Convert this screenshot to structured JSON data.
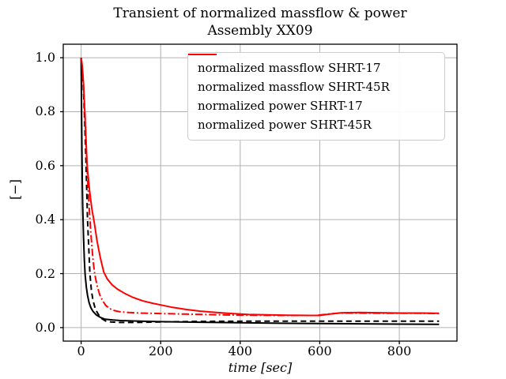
{
  "chart_data": {
    "type": "line",
    "title": "Transient of normalized massflow & power",
    "subtitle": "Assembly XX09",
    "xlabel": "time [sec]",
    "ylabel": "[−]",
    "xlim": [
      -45,
      945
    ],
    "ylim": [
      -0.05,
      1.05
    ],
    "xticks": [
      0,
      200,
      400,
      600,
      800
    ],
    "xtick_labels": [
      "0",
      "200",
      "400",
      "600",
      "800"
    ],
    "yticks": [
      0.0,
      0.2,
      0.4,
      0.6,
      0.8,
      1.0
    ],
    "ytick_labels": [
      "0.0",
      "0.2",
      "0.4",
      "0.6",
      "0.8",
      "1.0"
    ],
    "grid": true,
    "legend_position": "upper center",
    "colors": {
      "black_series": "#000000",
      "red_series": "#ff0000",
      "grid": "#b0b0b0",
      "frame": "#000000",
      "legend_border": "#cccccc"
    },
    "series": [
      {
        "name": "normalized massflow SHRT-17",
        "color": "#000000",
        "style": "dashed",
        "points": [
          [
            0,
            1.0
          ],
          [
            4,
            0.94
          ],
          [
            8,
            0.8
          ],
          [
            12,
            0.62
          ],
          [
            16,
            0.4
          ],
          [
            19,
            0.3
          ],
          [
            22,
            0.2
          ],
          [
            26,
            0.135
          ],
          [
            30,
            0.1
          ],
          [
            36,
            0.068
          ],
          [
            44,
            0.047
          ],
          [
            52,
            0.033
          ],
          [
            62,
            0.024
          ],
          [
            75,
            0.021
          ],
          [
            95,
            0.019
          ],
          [
            140,
            0.019
          ],
          [
            200,
            0.021
          ],
          [
            300,
            0.023
          ],
          [
            450,
            0.024
          ],
          [
            600,
            0.024
          ],
          [
            750,
            0.024
          ],
          [
            900,
            0.024
          ]
        ]
      },
      {
        "name": "normalized massflow SHRT-45R",
        "color": "#ff0000",
        "style": "dashdot",
        "points": [
          [
            0,
            1.0
          ],
          [
            5,
            0.92
          ],
          [
            10,
            0.78
          ],
          [
            14,
            0.62
          ],
          [
            18,
            0.5
          ],
          [
            22,
            0.4
          ],
          [
            26,
            0.32
          ],
          [
            30,
            0.25
          ],
          [
            34,
            0.2
          ],
          [
            40,
            0.155
          ],
          [
            47,
            0.12
          ],
          [
            54,
            0.1
          ],
          [
            62,
            0.082
          ],
          [
            72,
            0.07
          ],
          [
            84,
            0.063
          ],
          [
            100,
            0.058
          ],
          [
            120,
            0.056
          ],
          [
            150,
            0.054
          ],
          [
            200,
            0.052
          ],
          [
            260,
            0.05
          ],
          [
            330,
            0.048
          ],
          [
            400,
            0.046
          ],
          [
            500,
            0.045
          ],
          [
            590,
            0.045
          ],
          [
            620,
            0.05
          ],
          [
            650,
            0.054
          ],
          [
            700,
            0.054
          ],
          [
            780,
            0.053
          ],
          [
            850,
            0.053
          ],
          [
            900,
            0.052
          ]
        ]
      },
      {
        "name": "normalized power SHRT-17",
        "color": "#000000",
        "style": "solid",
        "points": [
          [
            0,
            1.0
          ],
          [
            1,
            0.82
          ],
          [
            2,
            0.66
          ],
          [
            3,
            0.54
          ],
          [
            4,
            0.45
          ],
          [
            6,
            0.33
          ],
          [
            8,
            0.25
          ],
          [
            10,
            0.195
          ],
          [
            13,
            0.15
          ],
          [
            16,
            0.12
          ],
          [
            20,
            0.092
          ],
          [
            25,
            0.072
          ],
          [
            30,
            0.06
          ],
          [
            38,
            0.047
          ],
          [
            48,
            0.038
          ],
          [
            60,
            0.031
          ],
          [
            80,
            0.028
          ],
          [
            100,
            0.026
          ],
          [
            150,
            0.024
          ],
          [
            200,
            0.022
          ],
          [
            300,
            0.02
          ],
          [
            400,
            0.018
          ],
          [
            500,
            0.016
          ],
          [
            600,
            0.015
          ],
          [
            700,
            0.014
          ],
          [
            800,
            0.013
          ],
          [
            900,
            0.012
          ]
        ]
      },
      {
        "name": "normalized power SHRT-45R",
        "color": "#ff0000",
        "style": "solid",
        "points": [
          [
            0,
            1.0
          ],
          [
            3,
            0.97
          ],
          [
            6,
            0.9
          ],
          [
            9,
            0.8
          ],
          [
            12,
            0.7
          ],
          [
            15,
            0.6
          ],
          [
            21,
            0.51
          ],
          [
            27,
            0.44
          ],
          [
            33,
            0.39
          ],
          [
            40,
            0.32
          ],
          [
            48,
            0.26
          ],
          [
            57,
            0.205
          ],
          [
            66,
            0.18
          ],
          [
            78,
            0.158
          ],
          [
            92,
            0.142
          ],
          [
            110,
            0.126
          ],
          [
            130,
            0.112
          ],
          [
            155,
            0.099
          ],
          [
            180,
            0.09
          ],
          [
            200,
            0.084
          ],
          [
            230,
            0.075
          ],
          [
            265,
            0.067
          ],
          [
            300,
            0.061
          ],
          [
            340,
            0.056
          ],
          [
            380,
            0.052
          ],
          [
            420,
            0.049
          ],
          [
            470,
            0.047
          ],
          [
            520,
            0.046
          ],
          [
            570,
            0.045
          ],
          [
            600,
            0.045
          ],
          [
            625,
            0.05
          ],
          [
            655,
            0.055
          ],
          [
            700,
            0.056
          ],
          [
            750,
            0.055
          ],
          [
            800,
            0.054
          ],
          [
            850,
            0.054
          ],
          [
            900,
            0.053
          ]
        ]
      }
    ]
  }
}
